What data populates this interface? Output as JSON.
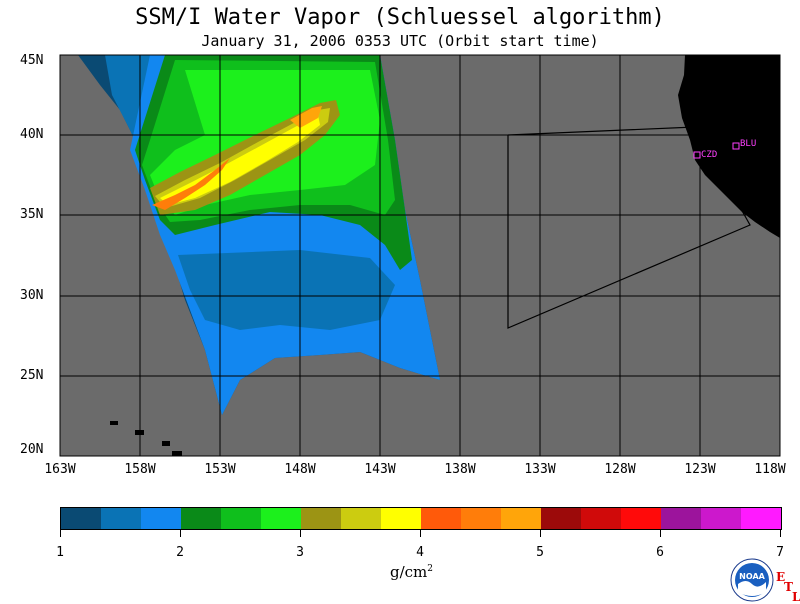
{
  "title": "SSM/I Water Vapor (Schluessel algorithm)",
  "subtitle": "January 31, 2006   0353 UTC  (Orbit start time)",
  "lat_labels": [
    "45N",
    "40N",
    "35N",
    "30N",
    "25N",
    "20N"
  ],
  "lon_labels": [
    "163W",
    "158W",
    "153W",
    "148W",
    "143W",
    "138W",
    "133W",
    "128W",
    "123W",
    "118W"
  ],
  "stations": [
    {
      "label": "CZD"
    },
    {
      "label": "BLU"
    }
  ],
  "colorbar": {
    "colors": [
      "#0a4a73",
      "#0a73b5",
      "#1287f0",
      "#0a8a18",
      "#0fbf1c",
      "#1cf01c",
      "#9c9414",
      "#cccc10",
      "#ffff00",
      "#ff5a0a",
      "#ff7d0a",
      "#ffa50a",
      "#9c0a0a",
      "#d00a0a",
      "#ff0a0a",
      "#9c149c",
      "#cc18cc",
      "#ff1aff"
    ],
    "ticks": [
      "1",
      "2",
      "3",
      "4",
      "5",
      "6",
      "7"
    ],
    "units": "g/cm",
    "units_exp": "2"
  },
  "logo": {
    "name": "NOAA",
    "text": "NOAA"
  },
  "etl_letters": [
    "E",
    "T",
    "L"
  ],
  "colors": {
    "ocean_nodata": "#6b6b6b",
    "land": "#000000",
    "station": "#ff40ff",
    "grid": "#000000"
  }
}
